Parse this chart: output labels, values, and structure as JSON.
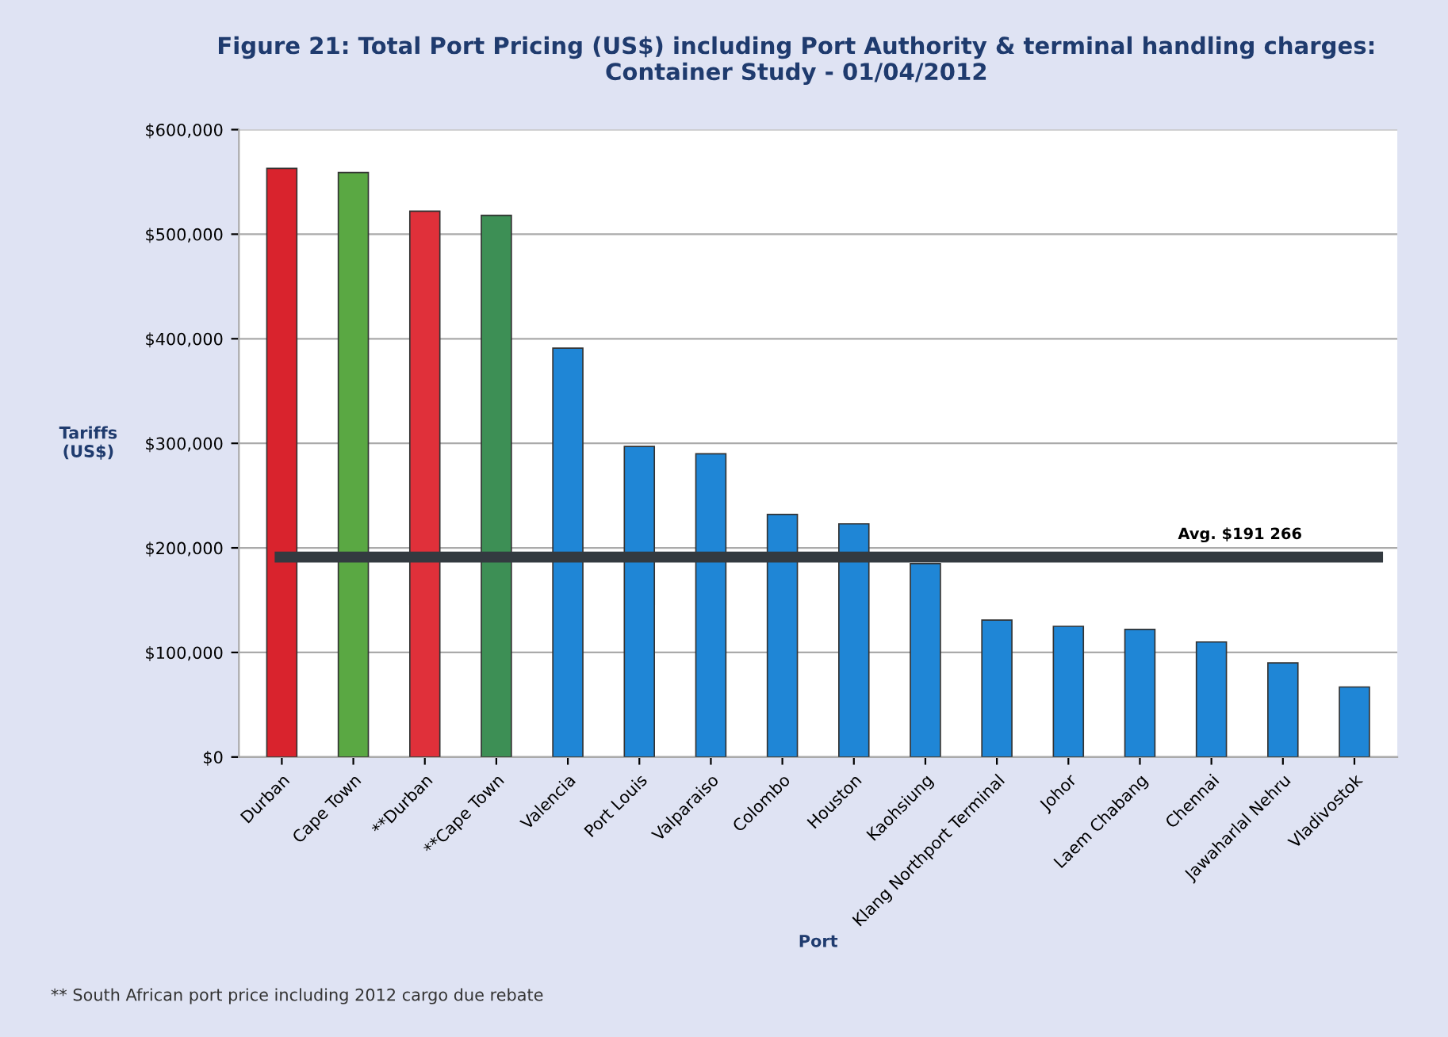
{
  "chart_data": {
    "type": "bar",
    "title": "Figure 21: Total Port Pricing (US$) including Port Authority & terminal handling charges:\nContainer Study - 01/04/2012",
    "xlabel": "Port",
    "ylabel": "Tariffs\n(US$)",
    "categories": [
      "Durban",
      "Cape Town",
      "**Durban",
      "**Cape Town",
      "Valencia",
      "Port Louis",
      "Valparaiso",
      "Colombo",
      "Houston",
      "Kaohsiung",
      "Klang Northport Terminal",
      "Johor",
      "Laem Chabang",
      "Chennai",
      "Jawaharlal Nehru",
      "Vladivostok"
    ],
    "values": [
      563000,
      559000,
      522000,
      518000,
      391000,
      297000,
      290000,
      232000,
      223000,
      185000,
      131000,
      125000,
      122000,
      110000,
      90000,
      67000
    ],
    "colors": [
      "#d9232d",
      "#5aa843",
      "#e0303a",
      "#3d8f55",
      "#1f86d6",
      "#1f86d6",
      "#1f86d6",
      "#1f86d6",
      "#1f86d6",
      "#1f86d6",
      "#1f86d6",
      "#1f86d6",
      "#1f86d6",
      "#1f86d6",
      "#1f86d6",
      "#1f86d6"
    ],
    "ylim": [
      0,
      600000
    ],
    "yticks": [
      {
        "value": 0,
        "label": "$0"
      },
      {
        "value": 100000,
        "label": "$100,000"
      },
      {
        "value": 200000,
        "label": "$200,000"
      },
      {
        "value": 300000,
        "label": "$300,000"
      },
      {
        "value": 400000,
        "label": "$400,000"
      },
      {
        "value": 500000,
        "label": "$500,000"
      },
      {
        "value": 600000,
        "label": "$600,000"
      }
    ],
    "grid": "y",
    "legend": false,
    "ref_lines": [
      {
        "axis": "y",
        "value": 191266,
        "label": "Avg. $191 266",
        "color": "#333a40"
      }
    ],
    "annotations": [
      "** South African port price including 2012 cargo due rebate"
    ]
  }
}
